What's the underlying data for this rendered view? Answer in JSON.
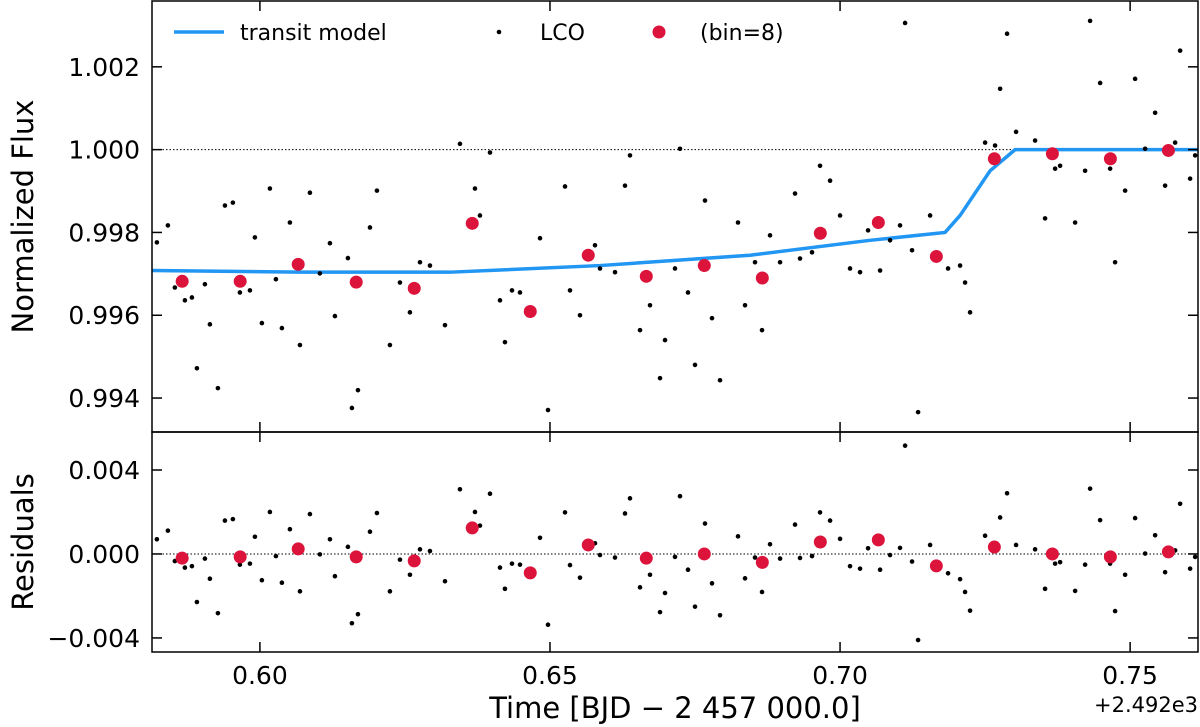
{
  "chart_data": [
    {
      "type": "scatter",
      "ylabel": "Normalized Flux",
      "xlim": [
        0.5814,
        0.7617
      ],
      "xticks": [
        {
          "value": 0.6,
          "label": "0.60"
        },
        0.65,
        {
          "value": 0.7,
          "label": "0.70"
        },
        0.75
      ],
      "ylim": [
        0.99318,
        1.00359
      ],
      "yticks": [
        0.994,
        0.996,
        0.998,
        {
          "value": 1,
          "label": "1.000"
        },
        1.002
      ],
      "reference_line": 1,
      "legend": "upper left",
      "series": [
        {
          "name": "transit model",
          "color": "#2196f3",
          "marker": "line",
          "x": [
            0.58138,
            0.6069,
            0.63276,
            0.65862,
            0.68448,
            0.70517,
            0.7181,
            0.72069,
            0.72586,
            0.73017,
            0.76172
          ],
          "values": [
            0.99708,
            0.99704,
            0.99704,
            0.9972,
            0.99745,
            0.99781,
            0.998,
            0.99841,
            0.99949,
            1.0,
            1.0
          ]
        },
        {
          "name": "LCO",
          "color": "#000000",
          "marker": "point",
          "x": [
            0.58224,
            0.58414,
            0.58534,
            0.58707,
            0.58828,
            0.58914,
            0.59052,
            0.59138,
            0.59276,
            0.59397,
            0.59534,
            0.59655,
            0.59828,
            0.59914,
            0.60034,
            0.60172,
            0.60276,
            0.60379,
            0.60517,
            0.6069,
            0.60862,
            0.61034,
            0.61207,
            0.61293,
            0.61517,
            0.61586,
            0.6169,
            0.61897,
            0.62017,
            0.62241,
            0.62414,
            0.62586,
            0.62759,
            0.62931,
            0.6319,
            0.63448,
            0.63707,
            0.63793,
            0.63966,
            0.64138,
            0.64224,
            0.64345,
            0.64483,
            0.64655,
            0.64828,
            0.64966,
            0.65259,
            0.65345,
            0.65517,
            0.65776,
            0.65862,
            0.66121,
            0.66293,
            0.66379,
            0.66552,
            0.66724,
            0.66897,
            0.66983,
            0.67155,
            0.67241,
            0.67379,
            0.675,
            0.67672,
            0.67793,
            0.67931,
            0.68241,
            0.68362,
            0.68534,
            0.68655,
            0.68793,
            0.68966,
            0.69224,
            0.6931,
            0.69517,
            0.69655,
            0.69828,
            0.7,
            0.70172,
            0.70345,
            0.70483,
            0.7069,
            0.70862,
            0.71034,
            0.71121,
            0.71241,
            0.71345,
            0.71552,
            0.71862,
            0.72069,
            0.72155,
            0.72241,
            0.725,
            0.72672,
            0.72759,
            0.72879,
            0.73034,
            0.73362,
            0.73534,
            0.73707,
            0.73793,
            0.74052,
            0.74224,
            0.7431,
            0.74483,
            0.74655,
            0.74741,
            0.74914,
            0.75086,
            0.75259,
            0.75431,
            0.75603,
            0.75776,
            0.75862,
            0.76034,
            0.76121
          ],
          "values": [
            0.99776,
            0.99817,
            0.99667,
            0.99636,
            0.99643,
            0.99472,
            0.99675,
            0.99578,
            0.99424,
            0.99865,
            0.99872,
            0.99655,
            0.9966,
            0.99788,
            0.99581,
            0.99906,
            0.99687,
            0.99569,
            0.99824,
            0.99528,
            0.99896,
            0.99701,
            0.99774,
            0.99598,
            0.99738,
            0.99376,
            0.99419,
            0.99812,
            0.99901,
            0.99528,
            0.99679,
            0.99607,
            0.99728,
            0.9972,
            0.99576,
            1.00014,
            0.99906,
            0.99841,
            0.99993,
            0.99636,
            0.99535,
            0.9966,
            0.99655,
            0.996,
            0.99786,
            0.99371,
            0.99911,
            0.9966,
            0.996,
            0.99769,
            0.99713,
            0.99704,
            0.99913,
            0.99986,
            0.99564,
            0.99624,
            0.99448,
            0.9954,
            0.99713,
            1.00002,
            0.99655,
            0.9948,
            0.99877,
            0.99593,
            0.99443,
            0.99824,
            0.99624,
            0.99728,
            0.99564,
            0.99793,
            0.99728,
            0.99894,
            0.99737,
            0.99752,
            0.99961,
            0.99925,
            0.99841,
            0.99713,
            0.99704,
            0.99805,
            0.99708,
            0.99781,
            0.99817,
            1.00306,
            0.99757,
            0.99366,
            0.99841,
            0.99713,
            0.9972,
            0.99679,
            0.99607,
            1.00017,
            1.0001,
            1.00147,
            1.0028,
            1.00043,
            1.00022,
            0.99834,
            0.99954,
            0.99961,
            0.99824,
            0.99949,
            1.00311,
            1.00161,
            0.99954,
            0.99728,
            0.99901,
            1.00171,
            1.00002,
            1.00089,
            0.99913,
            1.00017,
            1.00239,
            0.9993,
            0.99986
          ]
        },
        {
          "name": "(bin=8)",
          "color": "#dc143c",
          "marker": "circle",
          "x": [
            0.5866,
            0.5966,
            0.6066,
            0.6166,
            0.6266,
            0.6366,
            0.6466,
            0.6566,
            0.6666,
            0.6766,
            0.6866,
            0.6966,
            0.7066,
            0.7166,
            0.7266,
            0.7366,
            0.7466,
            0.7566
          ],
          "values": [
            0.99682,
            0.99682,
            0.99723,
            0.9968,
            0.99665,
            0.99822,
            0.99609,
            0.99745,
            0.99694,
            0.9972,
            0.9969,
            0.99798,
            0.99824,
            0.99742,
            0.99978,
            0.9999,
            0.99978,
            0.99998
          ]
        }
      ]
    },
    {
      "type": "scatter",
      "ylabel": "Residuals",
      "xlabel": "Time [BJD − 2 457 000.0]",
      "x_offset_label": "+2.492e3",
      "xlim": [
        0.5814,
        0.7617
      ],
      "xticks": [
        {
          "value": 0.6,
          "label": "0.60"
        },
        0.65,
        {
          "value": 0.7,
          "label": "0.70"
        },
        0.75
      ],
      "ylim": [
        -0.00467,
        0.00581
      ],
      "yticks": [
        {
          "value": -0.004,
          "label": "−0.004"
        },
        {
          "value": 0,
          "label": "0.000"
        },
        0.004
      ],
      "reference_line": 0,
      "series": [
        {
          "color": "#000000",
          "marker": "point",
          "x": [
            0.58224,
            0.58414,
            0.58534,
            0.58707,
            0.58828,
            0.58914,
            0.59052,
            0.59138,
            0.59276,
            0.59397,
            0.59534,
            0.59655,
            0.59828,
            0.59914,
            0.60034,
            0.60172,
            0.60276,
            0.60379,
            0.60517,
            0.6069,
            0.60862,
            0.61034,
            0.61207,
            0.61293,
            0.61517,
            0.61586,
            0.6169,
            0.61897,
            0.62017,
            0.62241,
            0.62414,
            0.62586,
            0.62759,
            0.62931,
            0.6319,
            0.63448,
            0.63707,
            0.63793,
            0.63966,
            0.64138,
            0.64224,
            0.64345,
            0.64483,
            0.64655,
            0.64828,
            0.64966,
            0.65259,
            0.65345,
            0.65517,
            0.65776,
            0.65862,
            0.66121,
            0.66293,
            0.66379,
            0.66552,
            0.66724,
            0.66897,
            0.66983,
            0.67155,
            0.67241,
            0.67379,
            0.675,
            0.67672,
            0.67793,
            0.67931,
            0.68241,
            0.68362,
            0.68534,
            0.68655,
            0.68793,
            0.68966,
            0.69224,
            0.6931,
            0.69517,
            0.69655,
            0.69828,
            0.7,
            0.70172,
            0.70345,
            0.70483,
            0.7069,
            0.70862,
            0.71034,
            0.71121,
            0.71241,
            0.71345,
            0.71552,
            0.71862,
            0.72069,
            0.72155,
            0.72241,
            0.725,
            0.72672,
            0.72759,
            0.72879,
            0.73034,
            0.73362,
            0.73534,
            0.73707,
            0.73793,
            0.74052,
            0.74224,
            0.7431,
            0.74483,
            0.74655,
            0.74741,
            0.74914,
            0.75086,
            0.75259,
            0.75431,
            0.75603,
            0.75776,
            0.75862,
            0.76034,
            0.76121
          ],
          "values": [
            0.0007,
            0.00111,
            -0.00034,
            -0.00065,
            -0.00058,
            -0.00229,
            -0.00022,
            -0.00118,
            -0.00282,
            0.00159,
            0.00166,
            -0.00051,
            -0.00046,
            0.00082,
            -0.00125,
            0.002,
            -0.0001,
            -0.00137,
            0.00118,
            -0.00178,
            0.0019,
            -2e-05,
            0.0007,
            -0.00106,
            0.00034,
            -0.0033,
            -0.00287,
            0.00106,
            0.00195,
            -0.00178,
            -0.00027,
            -0.00099,
            0.00022,
            0.00014,
            -0.0013,
            0.00308,
            0.002,
            0.00135,
            0.00287,
            -0.00065,
            -0.00166,
            -0.00046,
            -0.00051,
            -0.00106,
            0.00077,
            -0.00337,
            0.00198,
            -0.00053,
            -0.00113,
            0.00051,
            -5e-05,
            -0.00017,
            0.00193,
            0.00265,
            -0.00159,
            -0.00099,
            -0.00277,
            -0.00186,
            -0.00014,
            0.00275,
            -0.00075,
            -0.00251,
            0.00145,
            -0.0014,
            -0.00292,
            0.00084,
            -0.00116,
            -0.00017,
            -0.00181,
            0.00046,
            -0.00022,
            0.0014,
            -0.00019,
            -0.0001,
            0.00198,
            0.00159,
            0.00072,
            -0.00058,
            -0.0007,
            0.00027,
            -0.00075,
            -5e-05,
            0.00029,
            0.00516,
            -0.00036,
            -0.0041,
            0.00043,
            -0.00092,
            -0.0012,
            -0.00181,
            -0.0027,
            0.00087,
            0.00048,
            0.00174,
            0.00289,
            0.00043,
            0.00022,
            -0.00166,
            -0.00046,
            -0.00039,
            -0.00176,
            -0.00051,
            0.00311,
            0.00161,
            -0.00046,
            -0.00272,
            -0.00099,
            0.00171,
            2e-05,
            0.00089,
            -0.00087,
            0.00017,
            0.00239,
            -0.0007,
            -0.00014
          ]
        },
        {
          "color": "#dc143c",
          "marker": "circle",
          "x": [
            0.5866,
            0.5966,
            0.6066,
            0.6166,
            0.6266,
            0.6366,
            0.6466,
            0.6566,
            0.6666,
            0.6766,
            0.6866,
            0.6966,
            0.7066,
            0.7166,
            0.7266,
            0.7366,
            0.7466,
            0.7566
          ],
          "values": [
            -0.0002,
            -0.00014,
            0.00024,
            -0.00014,
            -0.00033,
            0.00124,
            -0.0009,
            0.00043,
            -0.0002,
            0,
            -0.0004,
            0.00057,
            0.00067,
            -0.00057,
            0.00033,
            0,
            -0.00014,
            0.0001
          ]
        }
      ]
    }
  ]
}
